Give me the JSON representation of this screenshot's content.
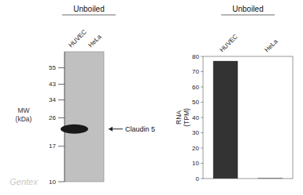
{
  "chart_data": [
    {
      "type": "western_blot",
      "title": "Unboiled",
      "categories": [
        "HUVEC",
        "HeLa"
      ],
      "y_label": "MW\n(kDa)",
      "log": "y",
      "ylim": [
        10,
        70
      ],
      "yticks": [
        55,
        43,
        34,
        26,
        17,
        10
      ],
      "values": [
        22,
        null
      ],
      "color": "#1a1a1a",
      "annotations": [
        "Claudin 5",
        "Gentex"
      ]
    },
    {
      "type": "bar",
      "title": "Unboiled",
      "categories": [
        "HUVEC",
        "HeLa"
      ],
      "y_label": "RNA\n(TPM)",
      "values": [
        77,
        0.3
      ],
      "color": "#333333",
      "ylim": [
        0,
        80
      ],
      "yticks": [
        0,
        10,
        20,
        30,
        40,
        50,
        60,
        70,
        80
      ]
    }
  ]
}
